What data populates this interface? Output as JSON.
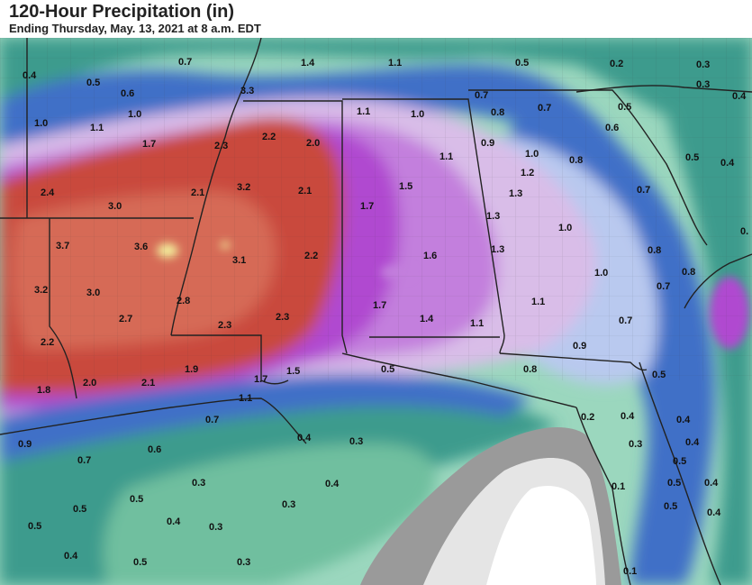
{
  "header": {
    "title": "120-Hour Precipitation (in)",
    "subtitle": "Ending Thursday, May. 13, 2021 at 8 a.m. EDT"
  },
  "map": {
    "colors": {
      "gulf_light": "#9bd7be",
      "gulf_mid": "#6fbf9f",
      "teal": "#3e9b8d",
      "blue": "#3f6fc7",
      "light_blue": "#b9c9ef",
      "lavender": "#d9bde8",
      "violet": "#c37fdd",
      "magenta": "#b04ad0",
      "red": "#c94a3c",
      "salmon": "#d66a56",
      "yellow": "#f3ef9c",
      "land_gray": "#9a9a9a",
      "land_light": "#e5e5e5",
      "border": "#222222"
    },
    "labels": [
      {
        "v": "0.4"
      },
      {
        "v": "0.7"
      },
      {
        "v": "1.4"
      },
      {
        "v": "1.1"
      },
      {
        "v": "0.5"
      },
      {
        "v": "0.2"
      },
      {
        "v": "0.3"
      },
      {
        "v": "0.5"
      },
      {
        "v": "0.6"
      },
      {
        "v": "3.3"
      },
      {
        "v": "0.7"
      },
      {
        "v": "0.3"
      },
      {
        "v": "0.4"
      },
      {
        "v": "1.0"
      },
      {
        "v": "1.0"
      },
      {
        "v": "1.1"
      },
      {
        "v": "1.0"
      },
      {
        "v": "0.8"
      },
      {
        "v": "0.7"
      },
      {
        "v": "0.5"
      },
      {
        "v": "1.1"
      },
      {
        "v": "0.6"
      },
      {
        "v": "1.7"
      },
      {
        "v": "2.3"
      },
      {
        "v": "2.2"
      },
      {
        "v": "2.0"
      },
      {
        "v": "0.9"
      },
      {
        "v": "1.0"
      },
      {
        "v": "1.1"
      },
      {
        "v": "0.8"
      },
      {
        "v": "0.5"
      },
      {
        "v": "0.4"
      },
      {
        "v": "1.2"
      },
      {
        "v": "2.4"
      },
      {
        "v": "2.1"
      },
      {
        "v": "3.2"
      },
      {
        "v": "2.1"
      },
      {
        "v": "1.5"
      },
      {
        "v": "1.3"
      },
      {
        "v": "0.7"
      },
      {
        "v": "3.0"
      },
      {
        "v": "1.7"
      },
      {
        "v": "1.3"
      },
      {
        "v": "1.0"
      },
      {
        "v": "3.7"
      },
      {
        "v": "3.6"
      },
      {
        "v": "2.2"
      },
      {
        "v": "1.3"
      },
      {
        "v": "0.8"
      },
      {
        "v": "0."
      },
      {
        "v": "3.1"
      },
      {
        "v": "1.6"
      },
      {
        "v": "1.0"
      },
      {
        "v": "0.8"
      },
      {
        "v": "3.2"
      },
      {
        "v": "3.0"
      },
      {
        "v": "2.8"
      },
      {
        "v": "1.7"
      },
      {
        "v": "1.1"
      },
      {
        "v": "0.7"
      },
      {
        "v": "2.7"
      },
      {
        "v": "2.3"
      },
      {
        "v": "2.3"
      },
      {
        "v": "1.4"
      },
      {
        "v": "1.1"
      },
      {
        "v": "0.7"
      },
      {
        "v": "2.2"
      },
      {
        "v": "0.9"
      },
      {
        "v": "1.9"
      },
      {
        "v": "1.5"
      },
      {
        "v": "0.5"
      },
      {
        "v": "0.8"
      },
      {
        "v": "0.5"
      },
      {
        "v": "1.8"
      },
      {
        "v": "2.0"
      },
      {
        "v": "2.1"
      },
      {
        "v": "1.7"
      },
      {
        "v": "1.1"
      },
      {
        "v": "0.2"
      },
      {
        "v": "0.4"
      },
      {
        "v": "0.4"
      },
      {
        "v": "0.7"
      },
      {
        "v": "0.3"
      },
      {
        "v": "0.4"
      },
      {
        "v": "0.9"
      },
      {
        "v": "0.6"
      },
      {
        "v": "0.4"
      },
      {
        "v": "0.3"
      },
      {
        "v": "0.5"
      },
      {
        "v": "0.7"
      },
      {
        "v": "0.3"
      },
      {
        "v": "0.4"
      },
      {
        "v": "0.1"
      },
      {
        "v": "0.5"
      },
      {
        "v": "0.4"
      },
      {
        "v": "0.5"
      },
      {
        "v": "0.5"
      },
      {
        "v": "0.3"
      },
      {
        "v": "0.5"
      },
      {
        "v": "0.4"
      },
      {
        "v": "0.5"
      },
      {
        "v": "0.4"
      },
      {
        "v": "0.3"
      },
      {
        "v": "0.4"
      },
      {
        "v": "0.5"
      },
      {
        "v": "0.3"
      },
      {
        "v": "0.1"
      }
    ]
  }
}
